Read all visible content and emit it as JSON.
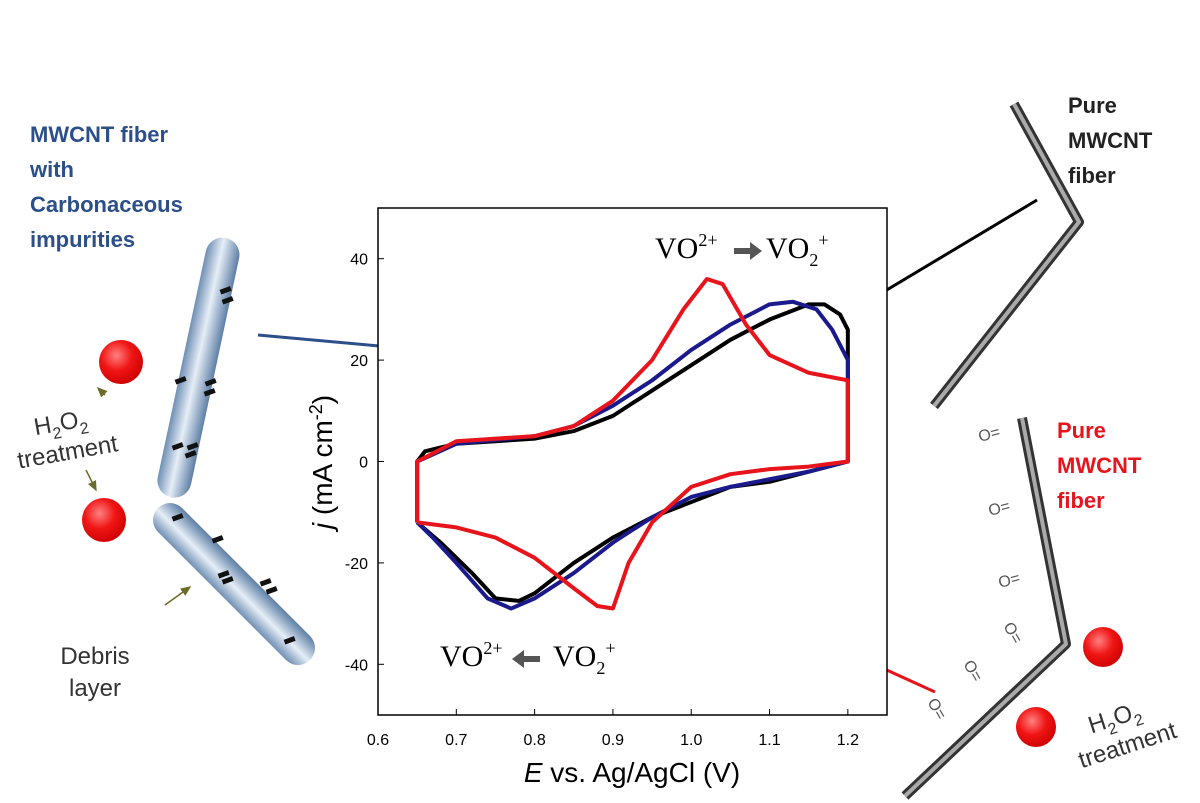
{
  "chart_data": {
    "type": "line",
    "xlabel": [
      "E",
      " vs. Ag/AgCl (V)"
    ],
    "ylabel": [
      "j",
      " (mA cm",
      "-2",
      ")"
    ],
    "xlim": [
      0.6,
      1.25
    ],
    "ylim": [
      -50,
      50
    ],
    "xticks": [
      0.6,
      0.7,
      0.8,
      0.9,
      {
        "value": 1,
        "label": "1.0"
      },
      1.1,
      1.2
    ],
    "yticks": [
      40,
      20,
      0,
      -20,
      -40
    ],
    "annotations": [
      [
        "VO",
        "2+",
        "VO",
        "2",
        "+"
      ],
      [
        "VO",
        "2+",
        "VO",
        "2",
        "+"
      ]
    ],
    "series": [
      {
        "color": "#000000",
        "x": [
          0.65,
          0.65,
          0.66,
          0.7,
          0.8,
          0.85,
          0.9,
          0.95,
          1.0,
          1.05,
          1.1,
          1.15,
          1.17,
          1.19,
          1.2,
          1.2,
          1.15,
          1.1,
          1.05,
          1.0,
          0.95,
          0.9,
          0.85,
          0.8,
          0.78,
          0.75,
          0.72,
          0.68,
          0.65
        ],
        "values": [
          -12,
          0,
          2,
          3.5,
          4.5,
          6,
          9,
          14,
          19,
          24,
          28,
          31,
          31,
          29,
          26,
          0,
          -2,
          -4,
          -5,
          -8,
          -11,
          -15,
          -20,
          -26,
          -27.5,
          -27,
          -22,
          -16,
          -12
        ]
      },
      {
        "color": "#1a1a8c",
        "x": [
          0.65,
          0.65,
          0.7,
          0.8,
          0.85,
          0.9,
          0.95,
          1.0,
          1.05,
          1.1,
          1.13,
          1.16,
          1.18,
          1.2,
          1.2,
          1.15,
          1.1,
          1.05,
          1.0,
          0.95,
          0.9,
          0.85,
          0.8,
          0.77,
          0.74,
          0.7,
          0.67,
          0.65
        ],
        "values": [
          -12,
          0,
          3.5,
          5,
          7,
          11,
          16,
          22,
          27,
          31,
          31.5,
          30,
          26,
          20,
          0,
          -2,
          -3.5,
          -5,
          -7,
          -11,
          -16,
          -22,
          -27,
          -29,
          -27,
          -20,
          -15,
          -12
        ]
      },
      {
        "color": "#e8141c",
        "x": [
          0.65,
          0.65,
          0.7,
          0.8,
          0.85,
          0.9,
          0.95,
          0.99,
          1.02,
          1.04,
          1.07,
          1.1,
          1.15,
          1.2,
          1.2,
          1.15,
          1.1,
          1.05,
          1.0,
          0.95,
          0.92,
          0.9,
          0.88,
          0.85,
          0.8,
          0.75,
          0.7,
          0.65
        ],
        "values": [
          -12,
          0,
          4,
          5,
          7,
          12,
          20,
          30,
          36,
          35,
          27,
          21,
          17.5,
          16,
          0,
          -1,
          -1.5,
          -2.5,
          -5,
          -12,
          -20,
          -29,
          -28.5,
          -25,
          -19,
          -15,
          -13,
          -12
        ]
      }
    ]
  },
  "illustration": {
    "impurity_fiber": [
      "MWCNT fiber",
      "with",
      "Carbonaceous",
      "impurities"
    ],
    "pure_fiber": [
      "Pure",
      "MWCNT",
      "fiber"
    ],
    "treated_fiber": [
      "Pure",
      "MWCNT",
      "fiber"
    ],
    "treatment_left": [
      "H",
      "2",
      "O",
      "2",
      "treatment"
    ],
    "treatment_right": [
      "H",
      "2",
      "O",
      "2",
      "treatment"
    ],
    "debris": [
      "Debris",
      "layer"
    ],
    "carbonyl": "O="
  }
}
